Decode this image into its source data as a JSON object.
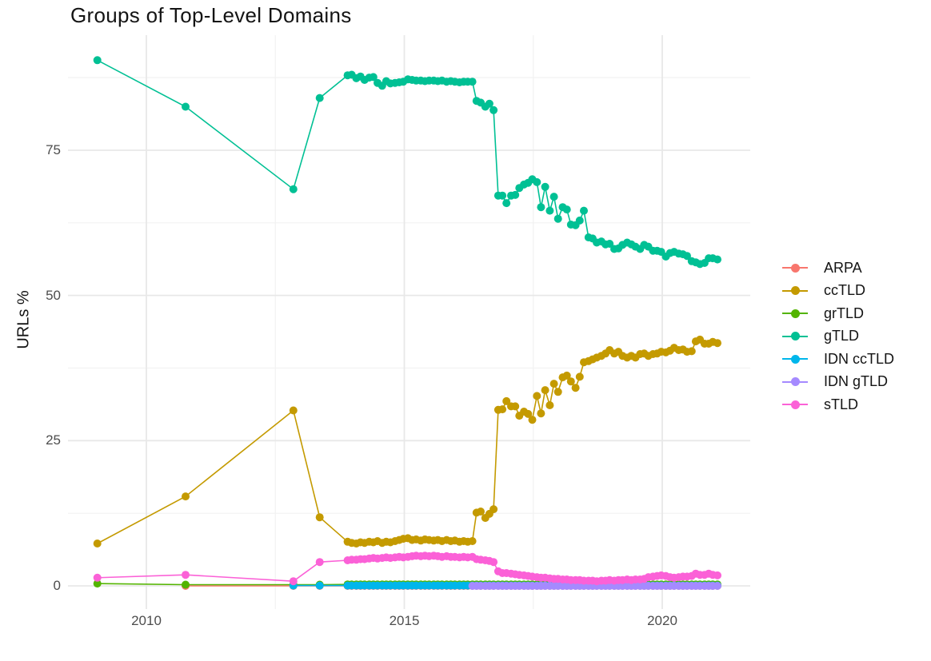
{
  "page": {
    "title": "Groups of Top-Level Domains",
    "ylabel": "URLs %"
  },
  "chart_data": {
    "type": "line",
    "title": "Groups of Top-Level Domains",
    "xlabel": "",
    "ylabel": "URLs %",
    "legend_position": "right",
    "grid": "on",
    "background": "#ffffff",
    "grid_major_color": "#e8e8e8",
    "grid_minor_color": "#f2f2f2",
    "xlim": [
      2008.5,
      2021.7
    ],
    "ylim": [
      -4,
      95
    ],
    "x_ticks": [
      {
        "label": "2010",
        "year": 2010
      },
      {
        "label": "2015",
        "year": 2015
      },
      {
        "label": "2020",
        "year": 2020
      }
    ],
    "y_ticks": [
      {
        "label": "0",
        "value": 0
      },
      {
        "label": "25",
        "value": 25
      },
      {
        "label": "50",
        "value": 50
      },
      {
        "label": "75",
        "value": 75
      }
    ],
    "x_minor": [
      2012.5,
      2017.5
    ],
    "y_minor": [
      12.5,
      37.5,
      62.5,
      87.5
    ],
    "dense_x": [
      2013.9,
      2013.98,
      2014.07,
      2014.15,
      2014.23,
      2014.32,
      2014.4,
      2014.48,
      2014.57,
      2014.65,
      2014.73,
      2014.82,
      2014.9,
      2014.98,
      2015.07,
      2015.15,
      2015.23,
      2015.32,
      2015.4,
      2015.48,
      2015.57,
      2015.65,
      2015.73,
      2015.82,
      2015.9,
      2015.98,
      2016.07,
      2016.15,
      2016.23,
      2016.32,
      2016.4,
      2016.48,
      2016.57,
      2016.65,
      2016.73,
      2016.82,
      2016.9,
      2016.98,
      2017.07,
      2017.15,
      2017.23,
      2017.32,
      2017.4,
      2017.48,
      2017.57,
      2017.65,
      2017.73,
      2017.82,
      2017.9,
      2017.98,
      2018.07,
      2018.15,
      2018.23,
      2018.32,
      2018.4,
      2018.48,
      2018.57,
      2018.65,
      2018.73,
      2018.82,
      2018.9,
      2018.98,
      2019.07,
      2019.15,
      2019.23,
      2019.32,
      2019.4,
      2019.48,
      2019.57,
      2019.65,
      2019.73,
      2019.82,
      2019.9,
      2019.98,
      2020.07,
      2020.15,
      2020.23,
      2020.32,
      2020.4,
      2020.48,
      2020.57,
      2020.65,
      2020.73,
      2020.82,
      2020.9,
      2020.98,
      2021.07
    ],
    "series": [
      {
        "name": "ARPA",
        "color": "#F8766D",
        "pre": [
          [
            2010.76,
            0.0
          ],
          [
            2012.85,
            0.0
          ],
          [
            2013.36,
            0.0
          ]
        ],
        "dense_from": 2013.9,
        "dense_const": 0.0
      },
      {
        "name": "ccTLD",
        "color": "#C49A00",
        "pre": [
          [
            2009.05,
            7.3
          ],
          [
            2010.76,
            15.4
          ],
          [
            2012.85,
            30.2
          ],
          [
            2013.36,
            11.8
          ]
        ],
        "dense_y": [
          7.6,
          7.4,
          7.3,
          7.5,
          7.4,
          7.6,
          7.5,
          7.7,
          7.4,
          7.6,
          7.5,
          7.7,
          7.9,
          8.1,
          8.2,
          7.9,
          8.0,
          7.8,
          8.0,
          7.9,
          7.8,
          7.9,
          7.7,
          7.9,
          7.7,
          7.8,
          7.6,
          7.7,
          7.6,
          7.7,
          12.6,
          12.8,
          11.7,
          12.4,
          13.2,
          30.3,
          30.4,
          31.8,
          30.9,
          30.9,
          29.3,
          30.0,
          29.6,
          28.6,
          32.7,
          29.7,
          33.7,
          31.1,
          34.8,
          33.4,
          35.9,
          36.2,
          35.2,
          34.1,
          36.0,
          38.5,
          38.7,
          39.0,
          39.3,
          39.6,
          40.0,
          40.6,
          40.0,
          40.3,
          39.6,
          39.3,
          39.6,
          39.3,
          39.9,
          40.0,
          39.6,
          39.9,
          40.0,
          40.3,
          40.2,
          40.5,
          41.0,
          40.6,
          40.7,
          40.3,
          40.4,
          42.1,
          42.4,
          41.7,
          41.7,
          42.0,
          41.8
        ]
      },
      {
        "name": "grTLD",
        "color": "#53B400",
        "pre": [
          [
            2009.05,
            0.4
          ],
          [
            2010.76,
            0.2
          ],
          [
            2012.85,
            0.2
          ],
          [
            2013.36,
            0.2
          ]
        ],
        "dense_from": 2013.9,
        "dense_const": 0.25
      },
      {
        "name": "gTLD",
        "color": "#00C094",
        "pre": [
          [
            2009.05,
            90.5
          ],
          [
            2010.76,
            82.5
          ],
          [
            2012.85,
            68.3
          ],
          [
            2013.36,
            84.0
          ]
        ],
        "dense_y": [
          87.9,
          88.0,
          87.4,
          87.7,
          87.1,
          87.5,
          87.6,
          86.6,
          86.1,
          86.9,
          86.5,
          86.6,
          86.7,
          86.8,
          87.2,
          87.1,
          87.0,
          87.0,
          86.9,
          87.0,
          87.0,
          86.9,
          87.0,
          86.8,
          86.9,
          86.8,
          86.7,
          86.8,
          86.8,
          86.8,
          83.5,
          83.2,
          82.5,
          83.0,
          81.9,
          67.2,
          67.2,
          65.9,
          67.2,
          67.3,
          68.5,
          69.1,
          69.4,
          70.0,
          69.5,
          65.2,
          68.7,
          64.6,
          67.0,
          63.2,
          65.2,
          64.8,
          62.2,
          62.1,
          62.9,
          64.6,
          60.0,
          59.8,
          59.1,
          59.3,
          58.8,
          58.9,
          58.0,
          58.1,
          58.7,
          59.1,
          58.8,
          58.4,
          58.0,
          58.7,
          58.4,
          57.7,
          57.7,
          57.5,
          56.7,
          57.3,
          57.5,
          57.2,
          57.1,
          56.8,
          55.9,
          55.7,
          55.4,
          55.6,
          56.4,
          56.4,
          56.2
        ]
      },
      {
        "name": "IDN ccTLD",
        "color": "#00B6EB",
        "pre": [
          [
            2012.85,
            0.05
          ],
          [
            2013.36,
            0.05
          ]
        ],
        "dense_from": 2013.9,
        "dense_const": 0.05
      },
      {
        "name": "IDN gTLD",
        "color": "#A58AFF",
        "pre": [],
        "dense_from": 2016.32,
        "dense_const": 0.0
      },
      {
        "name": "sTLD",
        "color": "#FB61D7",
        "pre": [
          [
            2009.05,
            1.4
          ],
          [
            2010.76,
            1.9
          ],
          [
            2012.85,
            0.8
          ],
          [
            2013.36,
            4.1
          ]
        ],
        "dense_y": [
          4.4,
          4.5,
          4.5,
          4.6,
          4.6,
          4.7,
          4.8,
          4.7,
          4.8,
          4.9,
          4.8,
          4.9,
          5.0,
          4.9,
          5.0,
          5.1,
          5.2,
          5.1,
          5.2,
          5.1,
          5.2,
          5.1,
          5.0,
          5.1,
          5.0,
          5.0,
          4.9,
          5.0,
          4.9,
          5.0,
          4.6,
          4.5,
          4.4,
          4.3,
          4.1,
          2.5,
          2.2,
          2.2,
          2.1,
          2.0,
          1.9,
          1.8,
          1.7,
          1.6,
          1.5,
          1.4,
          1.4,
          1.3,
          1.2,
          1.2,
          1.1,
          1.1,
          1.0,
          1.0,
          1.0,
          0.9,
          0.9,
          0.9,
          0.8,
          0.9,
          0.9,
          1.0,
          0.9,
          1.0,
          1.0,
          1.1,
          1.0,
          1.1,
          1.1,
          1.2,
          1.5,
          1.6,
          1.7,
          1.8,
          1.7,
          1.5,
          1.4,
          1.5,
          1.6,
          1.6,
          1.7,
          2.1,
          1.9,
          1.9,
          2.1,
          1.9,
          1.8
        ]
      }
    ]
  }
}
